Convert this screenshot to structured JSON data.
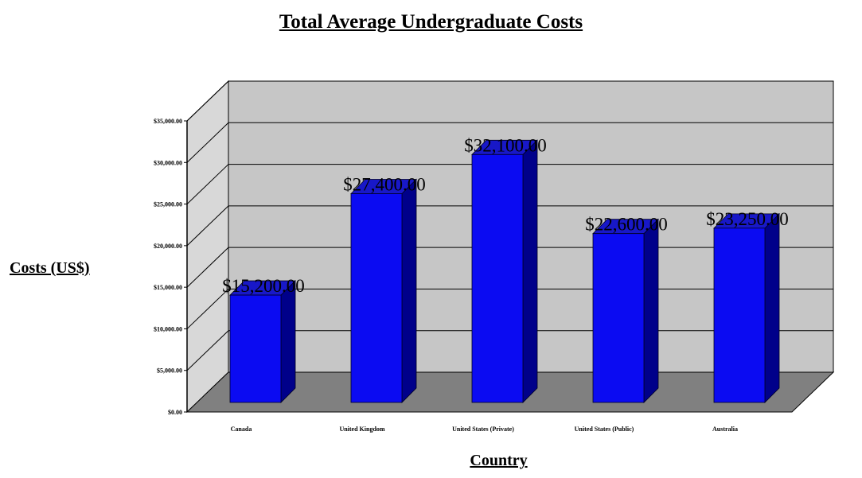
{
  "chart_data": {
    "type": "bar",
    "title": "Total Average Undergraduate Costs",
    "xlabel": "Country",
    "ylabel": "Costs (US$)",
    "categories": [
      "Canada",
      "United Kingdom",
      "United States (Private)",
      "United States (Public)",
      "Australia"
    ],
    "values": [
      15200,
      27400,
      32100,
      22600,
      23250
    ],
    "data_labels": [
      "$15,200.00",
      "$27,400.00",
      "$32,100.00",
      "$22,600.00",
      "$23,250.00"
    ],
    "y_ticks": [
      0,
      5000,
      10000,
      15000,
      20000,
      25000,
      30000,
      35000
    ],
    "y_tick_labels": [
      "$0.00",
      "$5,000.00",
      "$10,000.00",
      "$15,000.00",
      "$20,000.00",
      "$25,000.00",
      "$30,000.00",
      "$35,000.00"
    ],
    "ylim": [
      0,
      35000
    ],
    "grid": true,
    "legend": "none",
    "style": "3d-column",
    "colors": {
      "bar_front": "#0b0bf2",
      "bar_side": "#00008a",
      "bar_top": "#1818c8",
      "back_wall": "#c6c6c6",
      "side_wall": "#d8d8d8",
      "floor": "#808080"
    }
  }
}
